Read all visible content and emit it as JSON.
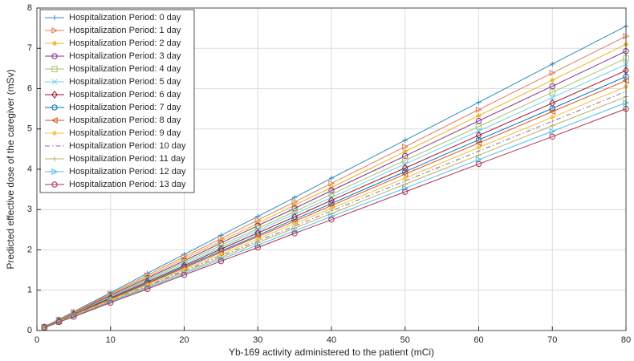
{
  "chart_data": {
    "type": "line",
    "x_label": "Yb-169 activity administered to the patient (mCi)",
    "y_label": "Predicted effective dose of the caregiver (mSv)",
    "x": [
      1,
      3,
      5,
      10,
      15,
      20,
      25,
      30,
      35,
      40,
      50,
      60,
      70,
      80
    ],
    "xlim": [
      0,
      80
    ],
    "xticks": [
      0,
      10,
      20,
      30,
      40,
      50,
      60,
      70,
      80
    ],
    "ylim": [
      0,
      8
    ],
    "yticks": [
      0,
      1,
      2,
      3,
      4,
      5,
      6,
      7,
      8
    ],
    "grid": true,
    "legend": "upper-left",
    "series": [
      {
        "name": "Hospitalization Period: 0 day",
        "color": "#2a8fbd",
        "marker": "+",
        "dash": "solid",
        "values": [
          0.09,
          0.28,
          0.47,
          0.94,
          1.42,
          1.89,
          2.36,
          2.83,
          3.3,
          3.78,
          4.72,
          5.66,
          6.61,
          7.55
        ]
      },
      {
        "name": "Hospitalization Period: 1 day",
        "color": "#e0805a",
        "marker": ">",
        "dash": "solid",
        "values": [
          0.09,
          0.27,
          0.46,
          0.91,
          1.37,
          1.83,
          2.28,
          2.74,
          3.19,
          3.65,
          4.56,
          5.48,
          6.39,
          7.3
        ]
      },
      {
        "name": "Hospitalization Period: 2 day",
        "color": "#edb120",
        "marker": "*",
        "dash": "solid",
        "values": [
          0.09,
          0.27,
          0.44,
          0.89,
          1.33,
          1.78,
          2.22,
          2.66,
          3.11,
          3.55,
          4.44,
          5.33,
          6.21,
          7.1
        ]
      },
      {
        "name": "Hospitalization Period: 3 day",
        "color": "#7e2f8e",
        "marker": "o",
        "dash": "solid",
        "values": [
          0.09,
          0.26,
          0.43,
          0.87,
          1.3,
          1.73,
          2.17,
          2.6,
          3.03,
          3.47,
          4.33,
          5.2,
          6.06,
          6.93
        ]
      },
      {
        "name": "Hospitalization Period: 4 day",
        "color": "#a6c46a",
        "marker": "s",
        "dash": "solid",
        "values": [
          0.08,
          0.25,
          0.42,
          0.84,
          1.27,
          1.69,
          2.11,
          2.53,
          2.95,
          3.38,
          4.22,
          5.06,
          5.91,
          6.75
        ]
      },
      {
        "name": "Hospitalization Period: 5 day",
        "color": "#6fd0e8",
        "marker": "x",
        "dash": "solid",
        "values": [
          0.08,
          0.25,
          0.41,
          0.83,
          1.24,
          1.65,
          2.06,
          2.48,
          2.89,
          3.3,
          4.13,
          4.95,
          5.78,
          6.6
        ]
      },
      {
        "name": "Hospitalization Period: 6 day",
        "color": "#a2142f",
        "marker": "d",
        "dash": "solid",
        "values": [
          0.08,
          0.24,
          0.4,
          0.81,
          1.21,
          1.61,
          2.02,
          2.42,
          2.82,
          3.23,
          4.03,
          4.84,
          5.64,
          6.45
        ]
      },
      {
        "name": "Hospitalization Period: 7 day",
        "color": "#0072bd",
        "marker": "o",
        "dash": "solid",
        "values": [
          0.08,
          0.24,
          0.39,
          0.79,
          1.18,
          1.58,
          1.97,
          2.36,
          2.76,
          3.15,
          3.94,
          4.73,
          5.51,
          6.3
        ]
      },
      {
        "name": "Hospitalization Period: 8 day",
        "color": "#d95319",
        "marker": "<",
        "dash": "solid",
        "values": [
          0.08,
          0.23,
          0.39,
          0.78,
          1.16,
          1.55,
          1.94,
          2.33,
          2.71,
          3.1,
          3.88,
          4.65,
          5.43,
          6.2
        ]
      },
      {
        "name": "Hospitalization Period: 9 day",
        "color": "#f0c040",
        "marker": "*",
        "dash": "solid",
        "values": [
          0.08,
          0.23,
          0.38,
          0.76,
          1.13,
          1.51,
          1.89,
          2.27,
          2.65,
          3.03,
          3.78,
          4.54,
          5.29,
          6.05
        ]
      },
      {
        "name": "Hospitalization Period: 10 day",
        "color": "#8a6d9e",
        "marker": "none",
        "dash": "dashdot",
        "values": [
          0.07,
          0.22,
          0.37,
          0.74,
          1.11,
          1.48,
          1.85,
          2.22,
          2.59,
          2.97,
          3.71,
          4.45,
          5.19,
          5.93
        ]
      },
      {
        "name": "Hospitalization Period: 11 day",
        "color": "#b8b060",
        "marker": "+",
        "dash": "solid",
        "values": [
          0.07,
          0.22,
          0.36,
          0.73,
          1.09,
          1.45,
          1.81,
          2.18,
          2.54,
          2.9,
          3.63,
          4.35,
          5.08,
          5.8
        ]
      },
      {
        "name": "Hospitalization Period: 12 day",
        "color": "#4dbeee",
        "marker": ">",
        "dash": "solid",
        "values": [
          0.07,
          0.21,
          0.35,
          0.71,
          1.06,
          1.41,
          1.77,
          2.12,
          2.47,
          2.83,
          3.53,
          4.24,
          4.94,
          5.65
        ]
      },
      {
        "name": "Hospitalization Period: 13 day",
        "color": "#b03050",
        "marker": "o",
        "dash": "solid",
        "values": [
          0.07,
          0.21,
          0.34,
          0.69,
          1.03,
          1.38,
          1.72,
          2.06,
          2.41,
          2.75,
          3.44,
          4.13,
          4.81,
          5.5
        ]
      }
    ]
  }
}
